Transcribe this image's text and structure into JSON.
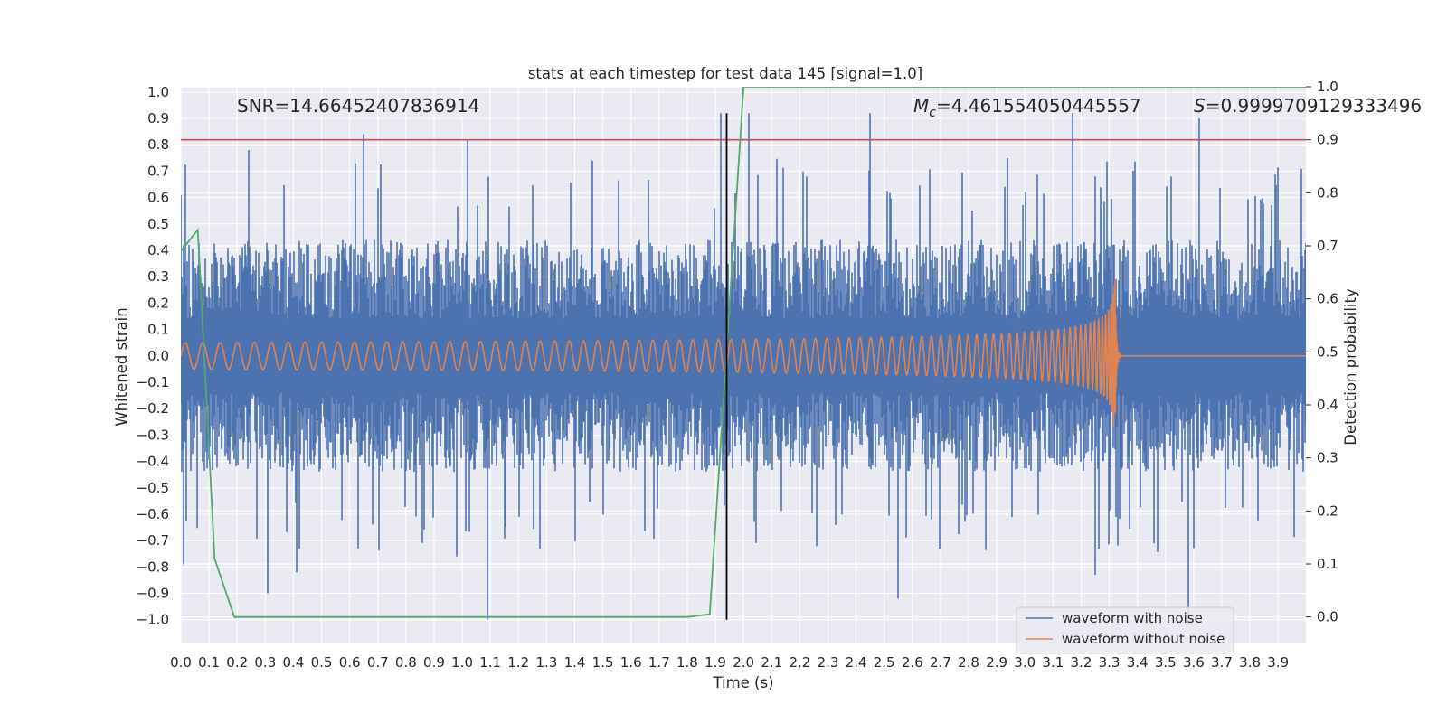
{
  "chart_data": {
    "type": "line",
    "title": "stats at each timestep for test data 145 [signal=1.0]",
    "xlabel": "Time (s)",
    "ylabel_left": "Whitened strain",
    "ylabel_right": "Detection probability",
    "xlim": [
      0.0,
      3.999
    ],
    "ylim_left": [
      -1.09,
      1.02
    ],
    "ylim_right": [
      -0.05,
      1.0
    ],
    "x_ticks": [
      "0.0",
      "0.1",
      "0.2",
      "0.3",
      "0.4",
      "0.5",
      "0.6",
      "0.7",
      "0.8",
      "0.9",
      "1.0",
      "1.1",
      "1.2",
      "1.3",
      "1.4",
      "1.5",
      "1.6",
      "1.7",
      "1.8",
      "1.9",
      "2.0",
      "2.1",
      "2.2",
      "2.3",
      "2.4",
      "2.5",
      "2.6",
      "2.7",
      "2.8",
      "2.9",
      "3.0",
      "3.1",
      "3.2",
      "3.3",
      "3.4",
      "3.5",
      "3.6",
      "3.7",
      "3.8",
      "3.9"
    ],
    "y_ticks_left": [
      "1.0",
      "0.9",
      "0.8",
      "0.7",
      "0.6",
      "0.5",
      "0.4",
      "0.3",
      "0.2",
      "0.1",
      "0.0",
      "−0.1",
      "−0.2",
      "−0.3",
      "−0.4",
      "−0.5",
      "−0.6",
      "−0.7",
      "−0.8",
      "−0.9",
      "−1.0"
    ],
    "y_ticks_right": [
      "1.0",
      "0.9",
      "0.8",
      "0.7",
      "0.6",
      "0.5",
      "0.4",
      "0.3",
      "0.2",
      "0.1",
      "0.0"
    ],
    "grid": true,
    "legend_position": "lower-right",
    "annotations": {
      "snr": "SNR=14.66452407836914",
      "mc_symbol": "M",
      "mc_subscript": "c",
      "mc_value": "=4.461554050445557",
      "s_symbol": "S",
      "s_value": "=0.9999709129333496"
    },
    "colors": {
      "background": "#eaeaf2",
      "grid": "#ffffff",
      "noisy": "#4c72b0",
      "clean": "#dd8452",
      "probability": "#55a868",
      "threshold": "#c44e52",
      "marker": "#000000"
    },
    "series": [
      {
        "name": "waveform with noise",
        "axis": "left",
        "description": "dense whitened strain time series",
        "x_range": [
          0.0,
          3.999
        ],
        "typical_amplitude": 0.4,
        "peaks": [
          {
            "x": 0.0,
            "y": 0.61
          },
          {
            "x": 0.01,
            "y": -0.79
          },
          {
            "x": 0.24,
            "y": 0.78
          },
          {
            "x": 0.31,
            "y": -0.9
          },
          {
            "x": 0.41,
            "y": -0.82
          },
          {
            "x": 0.65,
            "y": 0.84
          },
          {
            "x": 0.98,
            "y": -0.76
          },
          {
            "x": 1.02,
            "y": 0.82
          },
          {
            "x": 1.09,
            "y": -1.0
          },
          {
            "x": 1.92,
            "y": 0.92
          },
          {
            "x": 2.02,
            "y": 0.92
          },
          {
            "x": 2.45,
            "y": 0.92
          },
          {
            "x": 2.55,
            "y": -0.92
          },
          {
            "x": 3.17,
            "y": 0.92
          },
          {
            "x": 3.25,
            "y": -0.83
          },
          {
            "x": 3.58,
            "y": -1.0
          },
          {
            "x": 3.62,
            "y": 0.9
          }
        ]
      },
      {
        "name": "waveform without noise",
        "axis": "left",
        "description": "chirp signal with growing amplitude and frequency, merger near t=3.32 s",
        "merger_time": 3.32,
        "start_amplitude": 0.05,
        "start_frequency_hz": 16,
        "peak_amplitude": [
          0.38,
          -0.3
        ]
      },
      {
        "name": "detection probability",
        "axis": "right",
        "x": [
          0.0,
          0.06,
          0.12,
          0.19,
          1.8,
          1.88,
          2.0,
          4.0
        ],
        "y": [
          0.69,
          0.73,
          0.11,
          0.0,
          0.0,
          0.005,
          1.0,
          1.0
        ]
      },
      {
        "name": "threshold",
        "axis": "right",
        "type": "hline",
        "y": 0.9
      },
      {
        "name": "detection time",
        "axis": "left",
        "type": "vline",
        "x": 1.94,
        "y_range": [
          -1.0,
          0.92
        ]
      }
    ],
    "legend": [
      "waveform with noise",
      "waveform without noise"
    ]
  }
}
